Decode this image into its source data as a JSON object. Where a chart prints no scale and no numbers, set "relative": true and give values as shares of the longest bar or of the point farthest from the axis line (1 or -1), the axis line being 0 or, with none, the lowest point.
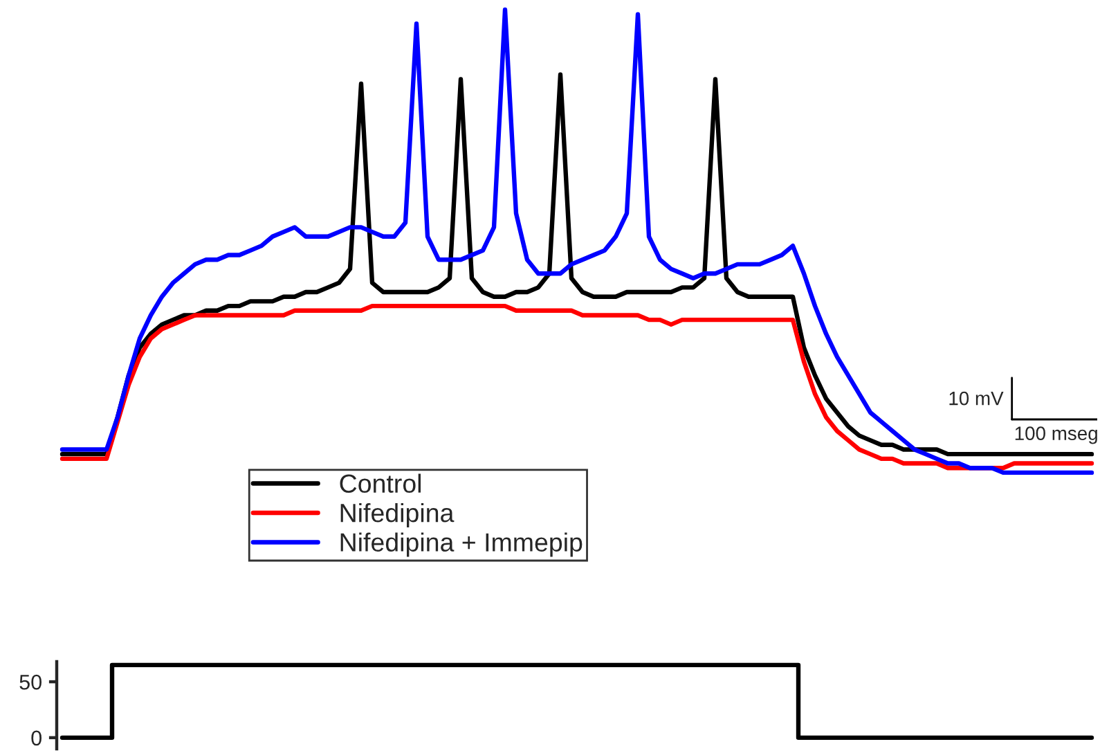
{
  "chart_data": [
    {
      "type": "line",
      "relative": true,
      "legend": "bottom",
      "annotations": [
        "10 mV",
        "100 mseg"
      ],
      "categories": [
        null,
        null,
        null,
        null,
        null,
        null,
        null,
        null,
        null,
        null,
        null,
        null,
        null,
        null,
        null,
        null,
        null,
        null,
        null,
        null,
        null,
        null,
        null,
        null,
        null,
        null,
        null,
        null,
        null,
        null,
        null,
        null,
        null,
        null,
        null,
        null,
        null,
        null,
        null,
        null,
        null,
        null,
        null,
        null,
        null,
        null,
        null,
        null,
        null,
        null,
        null,
        null,
        null,
        null,
        null,
        null,
        null,
        null,
        null,
        null,
        null,
        null,
        null,
        null,
        null,
        null,
        null,
        null,
        null,
        null,
        null,
        null,
        null,
        null,
        null,
        null,
        null,
        null,
        null,
        null,
        null,
        null,
        null,
        null,
        null,
        null,
        null,
        null,
        null,
        null,
        null,
        null,
        null,
        null
      ],
      "series": [
        {
          "name": "Control",
          "color": "#000000",
          "values": [
            0.04,
            0.04,
            0.04,
            0.04,
            0.04,
            0.12,
            0.21,
            0.27,
            0.3,
            0.32,
            0.33,
            0.34,
            0.34,
            0.35,
            0.35,
            0.36,
            0.36,
            0.37,
            0.37,
            0.37,
            0.38,
            0.38,
            0.39,
            0.39,
            0.4,
            0.41,
            0.44,
            0.84,
            0.41,
            0.39,
            0.39,
            0.39,
            0.39,
            0.39,
            0.4,
            0.42,
            0.85,
            0.42,
            0.39,
            0.38,
            0.38,
            0.39,
            0.39,
            0.4,
            0.43,
            0.86,
            0.42,
            0.39,
            0.38,
            0.38,
            0.38,
            0.39,
            0.39,
            0.39,
            0.39,
            0.39,
            0.4,
            0.4,
            0.42,
            0.85,
            0.42,
            0.39,
            0.38,
            0.38,
            0.38,
            0.38,
            0.38,
            0.27,
            0.21,
            0.16,
            0.13,
            0.1,
            0.08,
            0.07,
            0.06,
            0.06,
            0.05,
            0.05,
            0.05,
            0.05,
            0.04,
            0.04,
            0.04,
            0.04,
            0.04,
            0.04,
            0.04,
            0.04,
            0.04,
            0.04,
            0.04,
            0.04,
            0.04,
            0.04
          ]
        },
        {
          "name": "Nifedipina",
          "color": "#ff0000",
          "values": [
            0.03,
            0.03,
            0.03,
            0.03,
            0.03,
            0.11,
            0.19,
            0.25,
            0.29,
            0.31,
            0.32,
            0.33,
            0.34,
            0.34,
            0.34,
            0.34,
            0.34,
            0.34,
            0.34,
            0.34,
            0.34,
            0.35,
            0.35,
            0.35,
            0.35,
            0.35,
            0.35,
            0.35,
            0.36,
            0.36,
            0.36,
            0.36,
            0.36,
            0.36,
            0.36,
            0.36,
            0.36,
            0.36,
            0.36,
            0.36,
            0.36,
            0.35,
            0.35,
            0.35,
            0.35,
            0.35,
            0.35,
            0.34,
            0.34,
            0.34,
            0.34,
            0.34,
            0.34,
            0.33,
            0.33,
            0.32,
            0.33,
            0.33,
            0.33,
            0.33,
            0.33,
            0.33,
            0.33,
            0.33,
            0.33,
            0.33,
            0.33,
            0.24,
            0.17,
            0.12,
            0.09,
            0.07,
            0.05,
            0.04,
            0.03,
            0.03,
            0.02,
            0.02,
            0.02,
            0.02,
            0.01,
            0.01,
            0.01,
            0.01,
            0.01,
            0.01,
            0.02,
            0.02,
            0.02,
            0.02,
            0.02,
            0.02,
            0.02,
            0.02
          ]
        },
        {
          "name": "Nifedipina + Immepip",
          "color": "#0000ff",
          "values": [
            0.05,
            0.05,
            0.05,
            0.05,
            0.05,
            0.12,
            0.21,
            0.29,
            0.34,
            0.38,
            0.41,
            0.43,
            0.45,
            0.46,
            0.46,
            0.47,
            0.47,
            0.48,
            0.49,
            0.51,
            0.52,
            0.53,
            0.51,
            0.51,
            0.51,
            0.52,
            0.53,
            0.53,
            0.52,
            0.51,
            0.51,
            0.54,
            0.97,
            0.51,
            0.46,
            0.46,
            0.46,
            0.47,
            0.48,
            0.53,
            1.0,
            0.56,
            0.46,
            0.43,
            0.43,
            0.43,
            0.45,
            0.46,
            0.47,
            0.48,
            0.51,
            0.56,
            0.99,
            0.51,
            0.46,
            0.44,
            0.43,
            0.42,
            0.43,
            0.43,
            0.44,
            0.45,
            0.45,
            0.45,
            0.46,
            0.47,
            0.49,
            0.43,
            0.36,
            0.3,
            0.25,
            0.21,
            0.17,
            0.13,
            0.11,
            0.09,
            0.07,
            0.05,
            0.04,
            0.03,
            0.02,
            0.02,
            0.01,
            0.01,
            0.01,
            0.0,
            0.0,
            0.0,
            0.0,
            0.0,
            0.0,
            0.0,
            0.0,
            0.0
          ]
        }
      ]
    },
    {
      "type": "step",
      "tick_labels": "y",
      "ylim": [
        -10,
        68
      ],
      "yticks": [
        0,
        50
      ],
      "categories": [
        null,
        null,
        null,
        null,
        null,
        null,
        null,
        null,
        null,
        null,
        null,
        null,
        null,
        null,
        null,
        null,
        null,
        null,
        null,
        null,
        null,
        null,
        null,
        null,
        null,
        null,
        null,
        null,
        null,
        null,
        null,
        null,
        null,
        null,
        null,
        null,
        null,
        null,
        null,
        null,
        null,
        null,
        null,
        null,
        null,
        null,
        null,
        null,
        null,
        null,
        null,
        null,
        null,
        null,
        null,
        null,
        null,
        null,
        null,
        null,
        null,
        null,
        null,
        null,
        null,
        null,
        null,
        null,
        null,
        null,
        null,
        null,
        null,
        null,
        null,
        null,
        null,
        null,
        null,
        null,
        null,
        null,
        null,
        null,
        null,
        null,
        null,
        null,
        null,
        null,
        null,
        null,
        null,
        null
      ],
      "series": [
        {
          "color": "#000000",
          "values": [
            0,
            0,
            0,
            0,
            0,
            65,
            65,
            65,
            65,
            65,
            65,
            65,
            65,
            65,
            65,
            65,
            65,
            65,
            65,
            65,
            65,
            65,
            65,
            65,
            65,
            65,
            65,
            65,
            65,
            65,
            65,
            65,
            65,
            65,
            65,
            65,
            65,
            65,
            65,
            65,
            65,
            65,
            65,
            65,
            65,
            65,
            65,
            65,
            65,
            65,
            65,
            65,
            65,
            65,
            65,
            65,
            65,
            65,
            65,
            65,
            65,
            65,
            65,
            65,
            65,
            65,
            65,
            0,
            0,
            0,
            0,
            0,
            0,
            0,
            0,
            0,
            0,
            0,
            0,
            0,
            0,
            0,
            0,
            0,
            0,
            0,
            0,
            0,
            0,
            0,
            0,
            0,
            0,
            0
          ]
        }
      ]
    }
  ]
}
